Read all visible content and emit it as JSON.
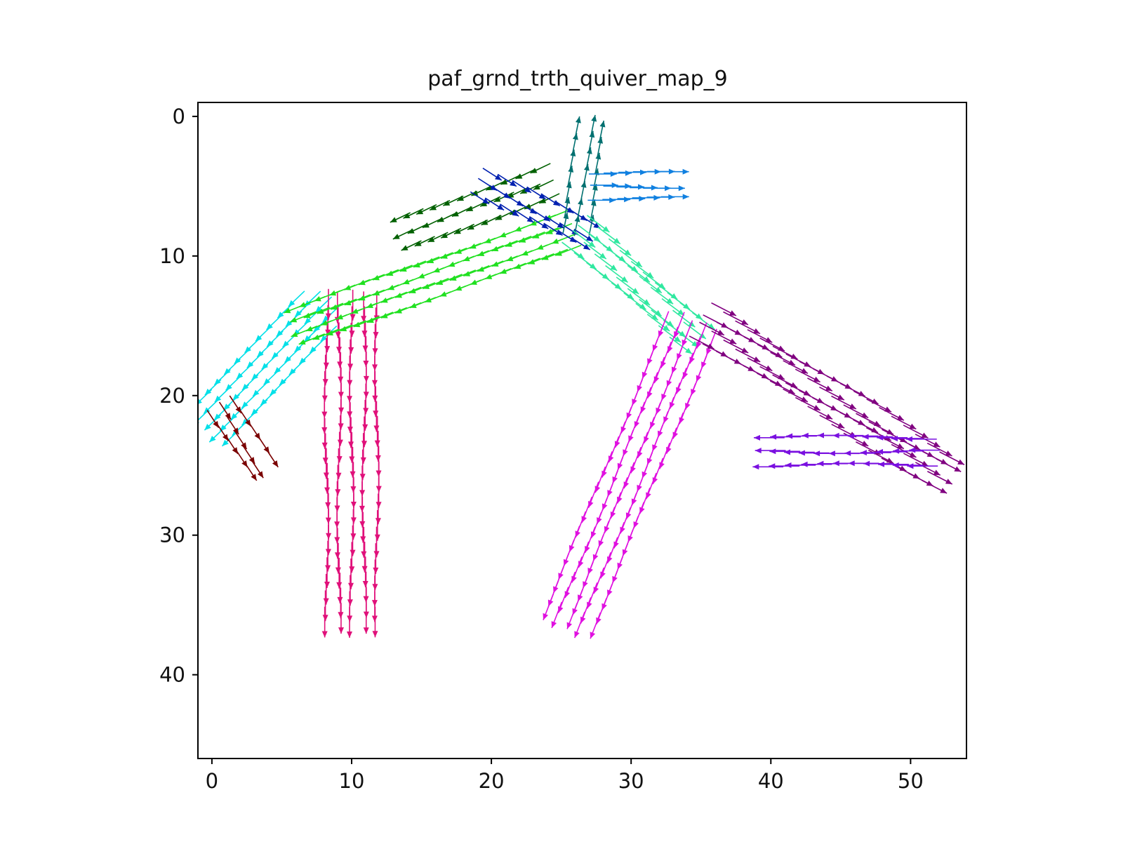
{
  "chart_data": {
    "type": "quiver",
    "title": "paf_grnd_trth_quiver_map_9",
    "xlabel": "",
    "ylabel": "",
    "xlim": [
      -1,
      54
    ],
    "ylim": [
      46,
      -1
    ],
    "y_inverted": true,
    "grid": false,
    "xticks": [
      0,
      10,
      20,
      30,
      40,
      50
    ],
    "yticks": [
      0,
      10,
      20,
      30,
      40
    ],
    "series": [
      {
        "color": "#00e0e8",
        "x_range": [
          0,
          9
        ],
        "y_range": [
          13,
          24
        ],
        "dx": -0.72,
        "dy": 0.69,
        "length": 1.6,
        "from": [
          8.5,
          13.0
        ],
        "to": [
          0.5,
          21.5
        ],
        "width": 3.4
      },
      {
        "color": "#7a0000",
        "x_range": [
          0,
          4
        ],
        "y_range": [
          20,
          26
        ],
        "dx": 0.55,
        "dy": 0.83,
        "length": 1.5,
        "from": [
          0.5,
          20.5
        ],
        "to": [
          3.0,
          24.5
        ],
        "width": 1.8
      },
      {
        "color": "#e0107a",
        "x_range": [
          8,
          12
        ],
        "y_range": [
          12,
          37
        ],
        "dx": 0.0,
        "dy": 1.0,
        "length": 2.2,
        "from": [
          10.0,
          12.5
        ],
        "to": [
          10.0,
          35.0
        ],
        "width": 3.6
      },
      {
        "color": "#20e020",
        "x_range": [
          6,
          27
        ],
        "y_range": [
          6,
          16
        ],
        "dx": -0.93,
        "dy": 0.37,
        "length": 2.0,
        "from": [
          26.0,
          8.0
        ],
        "to": [
          7.5,
          14.5
        ],
        "width": 2.6
      },
      {
        "color": "#006000",
        "x_range": [
          14,
          25
        ],
        "y_range": [
          3,
          9
        ],
        "dx": -0.9,
        "dy": 0.43,
        "length": 1.6,
        "from": [
          24.5,
          4.5
        ],
        "to": [
          14.5,
          8.0
        ],
        "width": 2.2
      },
      {
        "color": "#0020b0",
        "x_range": [
          18,
          27
        ],
        "y_range": [
          3,
          9
        ],
        "dx": 0.84,
        "dy": 0.54,
        "length": 1.6,
        "from": [
          19.0,
          4.5
        ],
        "to": [
          26.0,
          8.0
        ],
        "width": 1.8
      },
      {
        "color": "#007070",
        "x_range": [
          24,
          28
        ],
        "y_range": [
          1,
          9
        ],
        "dx": 0.2,
        "dy": -0.98,
        "length": 1.5,
        "from": [
          26.0,
          8.5
        ],
        "to": [
          27.0,
          1.5
        ],
        "width": 1.8
      },
      {
        "color": "#1080e0",
        "x_range": [
          26,
          33
        ],
        "y_range": [
          3,
          7
        ],
        "dx": 1.0,
        "dy": 0.0,
        "length": 2.0,
        "from": [
          27.0,
          5.0
        ],
        "to": [
          32.0,
          5.0
        ],
        "width": 1.8
      },
      {
        "color": "#30e8a0",
        "x_range": [
          25,
          35
        ],
        "y_range": [
          7,
          17
        ],
        "dx": 0.8,
        "dy": 0.6,
        "length": 2.0,
        "from": [
          26.0,
          8.0
        ],
        "to": [
          33.5,
          15.0
        ],
        "width": 2.4
      },
      {
        "color": "#e010e0",
        "x_range": [
          24,
          36
        ],
        "y_range": [
          13,
          37
        ],
        "dx": -0.36,
        "dy": 0.93,
        "length": 2.0,
        "from": [
          34.5,
          14.5
        ],
        "to": [
          26.0,
          35.0
        ],
        "width": 3.6
      },
      {
        "color": "#800080",
        "x_range": [
          33,
          53
        ],
        "y_range": [
          13,
          27
        ],
        "dx": 0.89,
        "dy": 0.46,
        "length": 2.0,
        "from": [
          35.0,
          14.5
        ],
        "to": [
          51.5,
          25.0
        ],
        "width": 2.6
      },
      {
        "color": "#7a10e0",
        "x_range": [
          40,
          53
        ],
        "y_range": [
          21,
          26
        ],
        "dx": -1.0,
        "dy": 0.0,
        "length": 2.2,
        "from": [
          52.0,
          24.0
        ],
        "to": [
          41.0,
          24.0
        ],
        "width": 2.0
      }
    ]
  }
}
